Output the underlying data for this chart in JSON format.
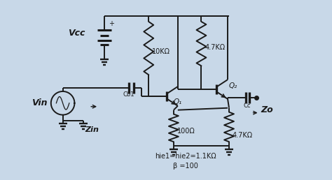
{
  "bg_color": "#c8d8e8",
  "line_color": "#1a1a1a",
  "vcc_label": "Vcc",
  "vin_label": "Vin",
  "zin_label": "Zin",
  "zo_label": "Zo",
  "r1_label": "10KΩ",
  "r2_label": "4.7KΩ",
  "r3_label": "100Ω",
  "r4_label": "4.7KΩ",
  "q1_label": "Q₁",
  "q2_label": "Q₂",
  "cb1_label": "Cb1",
  "cc_label": "Cc",
  "params_label": "hie1=hie2=1.1KΩ",
  "beta_label": "β =100",
  "plus_label": "+"
}
